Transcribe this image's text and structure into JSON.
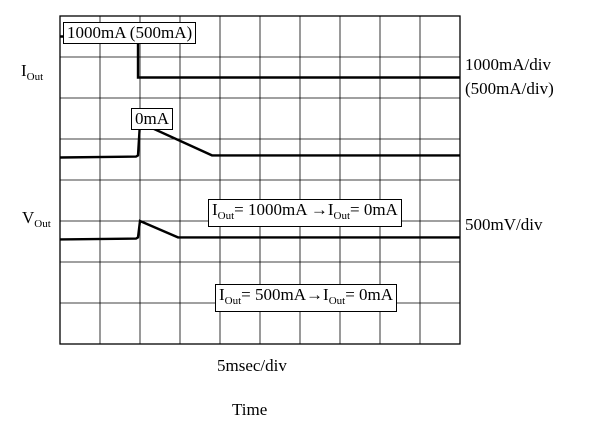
{
  "chart_data": {
    "type": "line",
    "grid": true,
    "divisions": {
      "x": 10,
      "y": 8
    },
    "channels": [
      {
        "label_main": "I",
        "label_sub": "Out",
        "scale": "1000mA/div",
        "scale_alt": "(500mA/div)"
      },
      {
        "label_main": "V",
        "label_sub": "Out",
        "scale": "500mV/div"
      }
    ],
    "time_scale": "5msec/div",
    "xlabel": "Time",
    "annotations": {
      "current_high": "1000mA (500mA)",
      "current_low": "0mA",
      "v_case1": {
        "pre": "I",
        "sub": "Out",
        "value": "= 1000mA ",
        "arrow": "→",
        "pre2": "I",
        "sub2": "Out",
        "value2": "= 0mA"
      },
      "v_case2": {
        "pre": "I",
        "sub": "Out",
        "value": "= 500mA",
        "arrow": "→",
        "pre2": "I",
        "sub2": "Out",
        "value2": "= 0mA"
      }
    },
    "series": [
      {
        "trace": "current",
        "x": [
          0,
          1.95,
          1.95,
          10
        ],
        "y": [
          7.5,
          7.5,
          6.5,
          6.5
        ]
      },
      {
        "trace": "vout_1000mA",
        "x": [
          0,
          1.9,
          1.95,
          2.0,
          3.8,
          10
        ],
        "y": [
          4.55,
          4.57,
          4.6,
          5.4,
          4.6,
          4.6
        ]
      },
      {
        "trace": "vout_500mA",
        "x": [
          0,
          1.9,
          1.95,
          2.0,
          2.95,
          10
        ],
        "y": [
          2.55,
          2.57,
          2.6,
          3.0,
          2.6,
          2.6
        ]
      }
    ]
  }
}
